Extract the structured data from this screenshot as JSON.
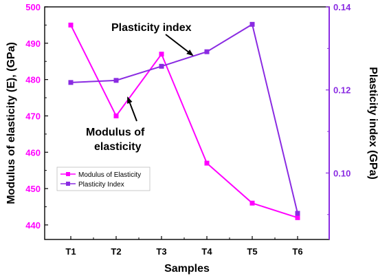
{
  "chart_data": {
    "type": "line",
    "xlabel": "Samples",
    "ylabel_left": "Modulus of elasticity (E), (GPa)",
    "ylabel_right": "Plasticity index (GPa)",
    "categories": [
      "T1",
      "T2",
      "T3",
      "T4",
      "T5",
      "T6"
    ],
    "left_axis": {
      "ylim": [
        436,
        500
      ],
      "ticks": [
        "440",
        "450",
        "460",
        "470",
        "480",
        "490",
        "500"
      ]
    },
    "right_axis": {
      "ylim": [
        0.084,
        0.14
      ],
      "ticks": [
        "0.10",
        "0.12",
        "0.14"
      ]
    },
    "series": [
      {
        "name": "Modulus of Elasticity",
        "axis": "left",
        "color": "#ff00ff",
        "marker": "square",
        "values": [
          495,
          470,
          487,
          457,
          446,
          442
        ]
      },
      {
        "name": "Plasticity Index",
        "axis": "right",
        "color": "#8a2be2",
        "marker": "square",
        "values": [
          0.1218,
          0.1223,
          0.1257,
          0.1292,
          0.1358,
          0.0903
        ]
      }
    ],
    "annotations": [
      {
        "text": "Plasticity index",
        "points_to": "Plasticity Index"
      },
      {
        "text_lines": [
          "Modulus of",
          "elasticity"
        ],
        "points_to": "Modulus of Elasticity"
      }
    ],
    "legend": {
      "position": "bottom-left",
      "entries": [
        "Modulus of Elasticity",
        "Plasticity Index"
      ]
    },
    "grid": false
  }
}
